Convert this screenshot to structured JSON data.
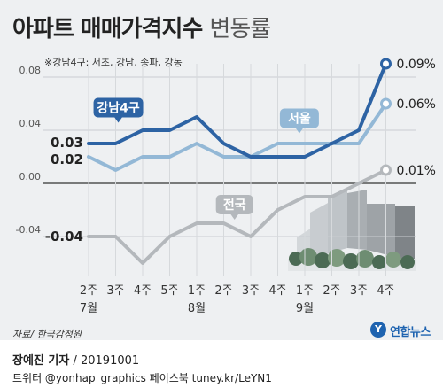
{
  "header": {
    "title_bold": "아파트 매매가격지수",
    "title_light": "변동률",
    "note": "※강남4구: 서초, 강남, 송파, 강동"
  },
  "footer": {
    "source": "자료/ 한국감정원",
    "logo_text": "연합뉴스",
    "credit_author": "장예진 기자",
    "credit_date": "20191001",
    "twitter_line": "트위터 @yonhap_graphics  페이스북 tuney.kr/LeYN1"
  },
  "colors": {
    "gangnam": "#2d63a4",
    "seoul": "#93b8d6",
    "national": "#b4b8bc",
    "badge_text": "#ffffff",
    "axis": "#555555"
  },
  "chart_data": {
    "type": "line",
    "x_weeks": [
      "2주",
      "3주",
      "4주",
      "5주",
      "1주",
      "2주",
      "3주",
      "4주",
      "1주",
      "2주",
      "3주",
      "4주"
    ],
    "months": [
      {
        "label": "7월",
        "index": 0
      },
      {
        "label": "8월",
        "index": 4
      },
      {
        "label": "9월",
        "index": 8
      }
    ],
    "ylim": [
      -0.07,
      0.09
    ],
    "y_ticks": [
      {
        "value": 0.08,
        "label": "0.08"
      },
      {
        "value": 0.04,
        "label": "0.04"
      },
      {
        "value": 0.0,
        "label": "0.00"
      },
      {
        "value": -0.04,
        "label": "-0.04"
      }
    ],
    "series": [
      {
        "name": "강남4구",
        "key": "gangnam",
        "values": [
          0.03,
          0.03,
          0.04,
          0.04,
          0.05,
          0.03,
          0.02,
          0.02,
          0.02,
          0.03,
          0.04,
          0.09
        ],
        "start_label": "0.03",
        "end_label": "0.09%"
      },
      {
        "name": "서울",
        "key": "seoul",
        "values": [
          0.02,
          0.01,
          0.02,
          0.02,
          0.03,
          0.02,
          0.02,
          0.03,
          0.03,
          0.03,
          0.03,
          0.06
        ],
        "start_label": "0.02",
        "end_label": "0.06%"
      },
      {
        "name": "전국",
        "key": "national",
        "values": [
          -0.04,
          -0.04,
          -0.06,
          -0.04,
          -0.03,
          -0.03,
          -0.04,
          -0.02,
          -0.01,
          -0.01,
          0.0,
          0.01
        ],
        "start_label": "-0.04",
        "end_label": "0.01%"
      }
    ]
  }
}
